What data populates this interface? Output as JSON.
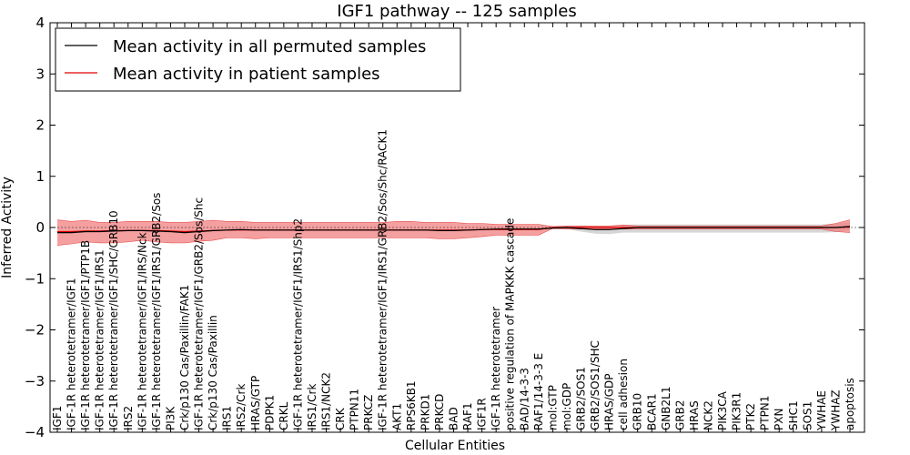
{
  "chart_data": {
    "type": "line",
    "title": "IGF1 pathway -- 125 samples",
    "xlabel": "Cellular Entities",
    "ylabel": "Inferred Activity",
    "ylim": [
      -4,
      4
    ],
    "yticks": [
      -4,
      -3,
      -2,
      -1,
      0,
      1,
      2,
      3,
      4
    ],
    "grid": false,
    "legend_position": "top-left",
    "colors": {
      "permuted": "#000000",
      "patient": "#e00000",
      "patient_band": "#f08080",
      "permuted_band": "#c8c8c8"
    },
    "categories": [
      "IGF1",
      "IGF-1R heterotetramer/IGF1",
      "IGF-1R heterotetramer/IGF1/PTP1B",
      "IGF-1R heterotetramer/IGF1/IRS1",
      "IGF-1R heterotetramer/IGF1/SHC/GRB10",
      "IRS2",
      "IGF-1R heterotetramer/IGF1/IRS/Nck",
      "IGF-1R heterotetramer/IGF1/IRS1/GRB2/Sos",
      "PI3K",
      "Crk/p130 Cas/Paxillin/FAK1",
      "IGF-1R heterotetramer/IGF1/GRB2/Sos/Shc",
      "Crk/p130 Cas/Paxillin",
      "IRS1",
      "IRS2/Crk",
      "HRAS/GTP",
      "PDPK1",
      "CRKL",
      "IGF-1R heterotetramer/IGF1/IRS1/Shp2",
      "IRS1/Crk",
      "IRS1/NCK2",
      "CRK",
      "PTPN11",
      "PRKCZ",
      "IGF-1R heterotetramer/IGF1/IRS1/GRB2/Sos/Shc/RACK1",
      "AKT1",
      "RPS6KB1",
      "PRKD1",
      "PRKCD",
      "BAD",
      "RAF1",
      "IGF1R",
      "IGF-1R heterotetramer",
      "positive regulation of MAPKKK cascade",
      "BAD/14-3-3",
      "RAF1/14-3-3 E",
      "mol:GTP",
      "mol:GDP",
      "GRB2/SOS1",
      "GRB2/SOS1/SHC",
      "HRAS/GDP",
      "cell adhesion",
      "GRB10",
      "BCAR1",
      "GNB2L1",
      "GRB2",
      "HRAS",
      "NCK2",
      "PIK3CA",
      "PIK3R1",
      "PTK2",
      "PTPN1",
      "PXN",
      "SHC1",
      "SOS1",
      "YWHAE",
      "YWHAZ",
      "apoptosis"
    ],
    "series": [
      {
        "name": "Mean activity in all permuted samples",
        "color": "#000000",
        "values": [
          -0.1,
          -0.1,
          -0.08,
          -0.08,
          -0.07,
          -0.06,
          -0.06,
          -0.07,
          -0.08,
          -0.1,
          -0.08,
          -0.06,
          -0.05,
          -0.04,
          -0.05,
          -0.05,
          -0.05,
          -0.05,
          -0.05,
          -0.05,
          -0.05,
          -0.05,
          -0.05,
          -0.05,
          -0.05,
          -0.05,
          -0.05,
          -0.06,
          -0.06,
          -0.05,
          -0.04,
          -0.03,
          -0.03,
          -0.03,
          -0.03,
          -0.01,
          0.0,
          -0.02,
          -0.04,
          -0.04,
          -0.02,
          0.0,
          0.0,
          0.0,
          0.0,
          0.0,
          0.0,
          0.0,
          0.0,
          0.0,
          0.0,
          0.0,
          0.0,
          0.0,
          0.0,
          0.0,
          0.02
        ],
        "band_lower": [
          -0.12,
          -0.12,
          -0.1,
          -0.1,
          -0.09,
          -0.08,
          -0.08,
          -0.09,
          -0.1,
          -0.12,
          -0.1,
          -0.08,
          -0.07,
          -0.06,
          -0.07,
          -0.07,
          -0.07,
          -0.07,
          -0.07,
          -0.07,
          -0.07,
          -0.07,
          -0.07,
          -0.07,
          -0.07,
          -0.07,
          -0.07,
          -0.08,
          -0.08,
          -0.07,
          -0.06,
          -0.05,
          -0.05,
          -0.05,
          -0.05,
          -0.03,
          -0.03,
          -0.08,
          -0.12,
          -0.13,
          -0.1,
          -0.1,
          -0.1,
          -0.1,
          -0.1,
          -0.1,
          -0.1,
          -0.1,
          -0.1,
          -0.1,
          -0.1,
          -0.1,
          -0.1,
          -0.1,
          -0.1,
          -0.09,
          -0.05
        ],
        "band_upper": [
          -0.08,
          -0.08,
          -0.06,
          -0.06,
          -0.05,
          -0.04,
          -0.04,
          -0.05,
          -0.06,
          -0.08,
          -0.06,
          -0.04,
          -0.03,
          -0.02,
          -0.03,
          -0.03,
          -0.03,
          -0.03,
          -0.03,
          -0.03,
          -0.03,
          -0.03,
          -0.03,
          -0.03,
          -0.03,
          -0.03,
          -0.03,
          -0.04,
          -0.04,
          -0.03,
          -0.02,
          -0.01,
          -0.01,
          -0.01,
          -0.01,
          0.01,
          0.03,
          0.04,
          0.03,
          0.03,
          0.05,
          0.06,
          0.06,
          0.06,
          0.06,
          0.06,
          0.06,
          0.06,
          0.06,
          0.06,
          0.06,
          0.06,
          0.06,
          0.06,
          0.06,
          0.08,
          0.1
        ]
      },
      {
        "name": "Mean activity in patient samples",
        "color": "#e00000",
        "values": [
          -0.08,
          -0.08,
          -0.07,
          -0.07,
          -0.06,
          -0.06,
          -0.06,
          -0.06,
          -0.07,
          -0.08,
          -0.07,
          -0.06,
          -0.05,
          -0.05,
          -0.05,
          -0.05,
          -0.05,
          -0.05,
          -0.05,
          -0.05,
          -0.05,
          -0.05,
          -0.05,
          -0.05,
          -0.05,
          -0.05,
          -0.05,
          -0.05,
          -0.05,
          -0.05,
          -0.04,
          -0.04,
          -0.04,
          -0.04,
          -0.04,
          0.0,
          0.0,
          0.0,
          0.0,
          0.0,
          0.0,
          0.0,
          0.0,
          0.0,
          0.0,
          0.0,
          0.0,
          0.0,
          0.0,
          0.0,
          0.0,
          0.0,
          0.0,
          0.0,
          0.0,
          0.0,
          0.01
        ],
        "band_lower": [
          -0.35,
          -0.32,
          -0.28,
          -0.3,
          -0.3,
          -0.28,
          -0.25,
          -0.28,
          -0.3,
          -0.3,
          -0.27,
          -0.25,
          -0.2,
          -0.2,
          -0.22,
          -0.2,
          -0.2,
          -0.2,
          -0.2,
          -0.2,
          -0.2,
          -0.2,
          -0.2,
          -0.2,
          -0.2,
          -0.2,
          -0.2,
          -0.22,
          -0.22,
          -0.2,
          -0.18,
          -0.15,
          -0.15,
          -0.15,
          -0.15,
          -0.02,
          -0.03,
          -0.03,
          -0.03,
          -0.03,
          -0.03,
          -0.03,
          -0.03,
          -0.03,
          -0.03,
          -0.03,
          -0.03,
          -0.03,
          -0.03,
          -0.03,
          -0.03,
          -0.03,
          -0.03,
          -0.03,
          -0.03,
          -0.08,
          -0.1
        ],
        "band_upper": [
          0.15,
          0.12,
          0.14,
          0.1,
          0.1,
          0.12,
          0.12,
          0.12,
          0.1,
          0.1,
          0.12,
          0.14,
          0.12,
          0.12,
          0.1,
          0.1,
          0.1,
          0.1,
          0.1,
          0.1,
          0.1,
          0.1,
          0.1,
          0.1,
          0.12,
          0.12,
          0.1,
          0.1,
          0.1,
          0.08,
          0.08,
          0.06,
          0.06,
          0.06,
          0.06,
          0.02,
          0.03,
          0.03,
          0.03,
          0.03,
          0.05,
          0.03,
          0.03,
          0.03,
          0.03,
          0.03,
          0.03,
          0.03,
          0.03,
          0.03,
          0.03,
          0.03,
          0.03,
          0.03,
          0.03,
          0.08,
          0.15
        ]
      }
    ]
  }
}
